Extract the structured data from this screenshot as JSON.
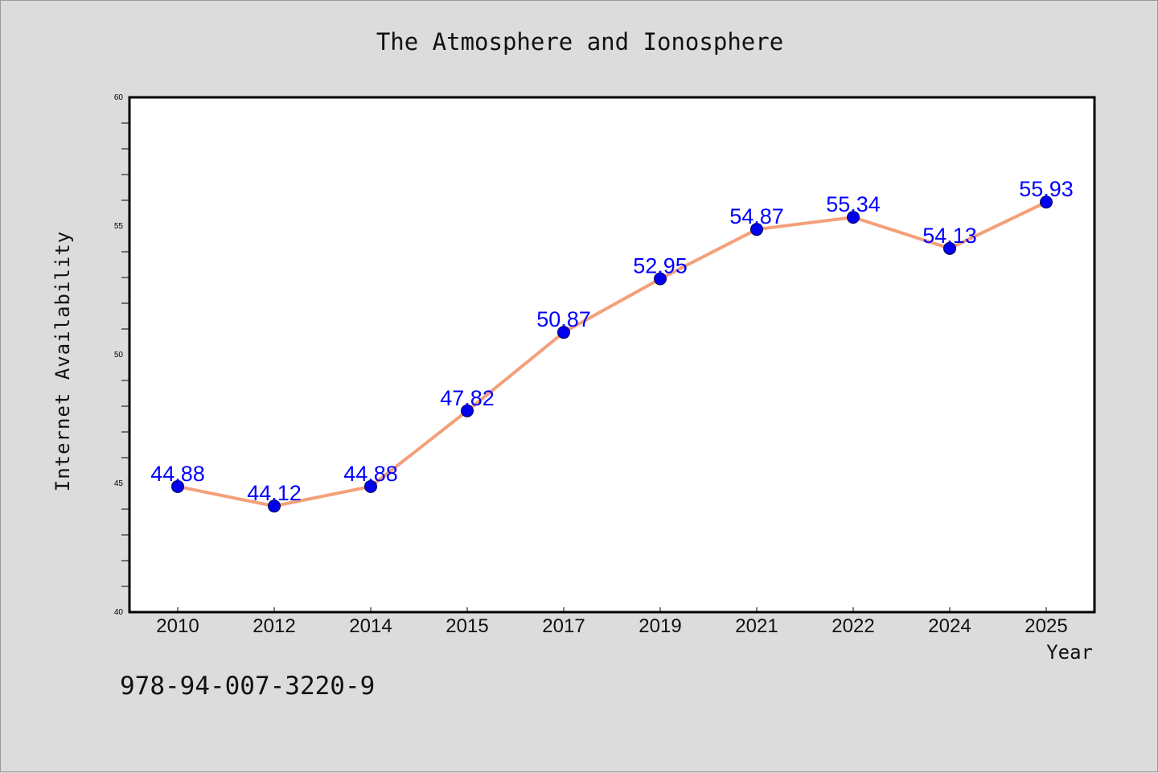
{
  "chart_data": {
    "type": "line",
    "title": "The Atmosphere and Ionosphere",
    "xlabel": "Year",
    "ylabel": "Internet Availability",
    "categories": [
      "2010",
      "2012",
      "2014",
      "2015",
      "2017",
      "2019",
      "2021",
      "2022",
      "2024",
      "2025"
    ],
    "series": [
      {
        "values": [
          44.88,
          44.12,
          44.88,
          47.82,
          50.87,
          52.95,
          54.87,
          55.34,
          54.13,
          55.93
        ],
        "labels": [
          "44.88",
          "44.12",
          "44.88",
          "47.82",
          "50.87",
          "52.95",
          "54.87",
          "55.34",
          "54.13",
          "55.93"
        ],
        "line_color": "#f4a07a",
        "marker_color": "#0000ee",
        "label_color": "#0000ff"
      }
    ],
    "ylim": [
      40,
      60
    ],
    "yticks": [
      "40",
      "45",
      "50",
      "55",
      "60"
    ],
    "grid": false,
    "legend": "none"
  },
  "footer": {
    "isbn": "978-94-007-3220-9"
  },
  "colors": {
    "background": "#dcdcdc",
    "plot_area": "#ffffff",
    "axis": "#000000"
  }
}
